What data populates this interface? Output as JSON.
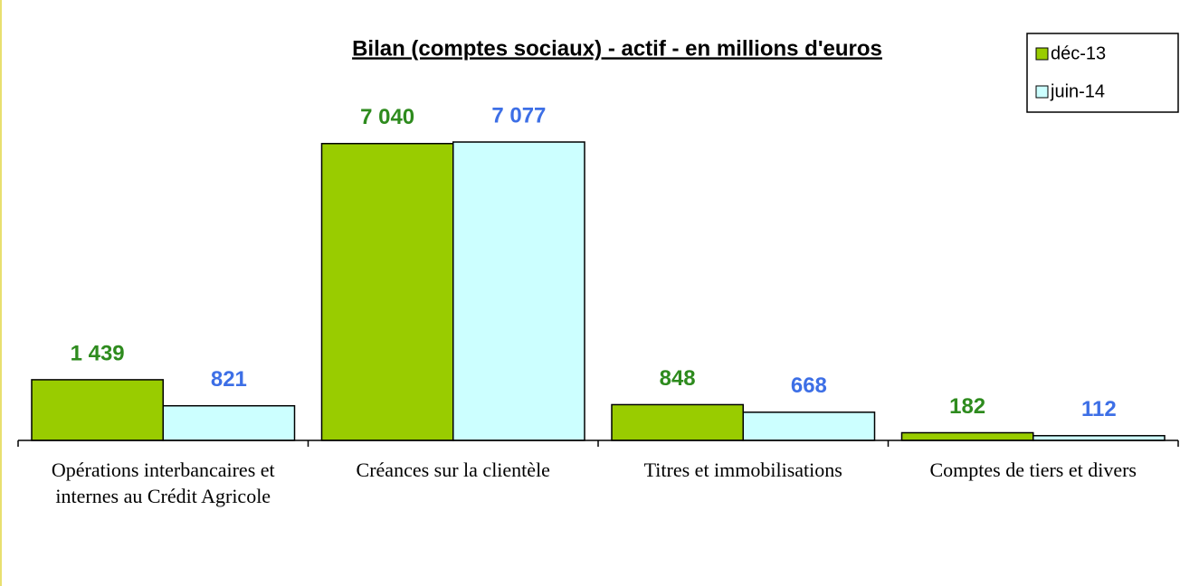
{
  "chart_data": {
    "type": "bar",
    "title": "Bilan (comptes sociaux) - actif - en millions d'euros",
    "categories": [
      "Opérations interbancaires et internes au Crédit Agricole",
      "Créances sur la clientèle",
      "Titres et immobilisations",
      "Comptes de tiers et divers"
    ],
    "series": [
      {
        "name": "déc-13",
        "color": "#99cc00",
        "label_color": "#2e8b1e",
        "values": [
          1439,
          7040,
          848,
          182
        ],
        "value_labels": [
          "1 439",
          "7 040",
          "848",
          "182"
        ]
      },
      {
        "name": "juin-14",
        "color": "#ccffff",
        "label_color": "#3d6fe6",
        "values": [
          821,
          7077,
          668,
          112
        ],
        "value_labels": [
          "821",
          "7 077",
          "668",
          "112"
        ]
      }
    ],
    "ylim": [
      0,
      8000
    ],
    "legend": "top-right"
  }
}
